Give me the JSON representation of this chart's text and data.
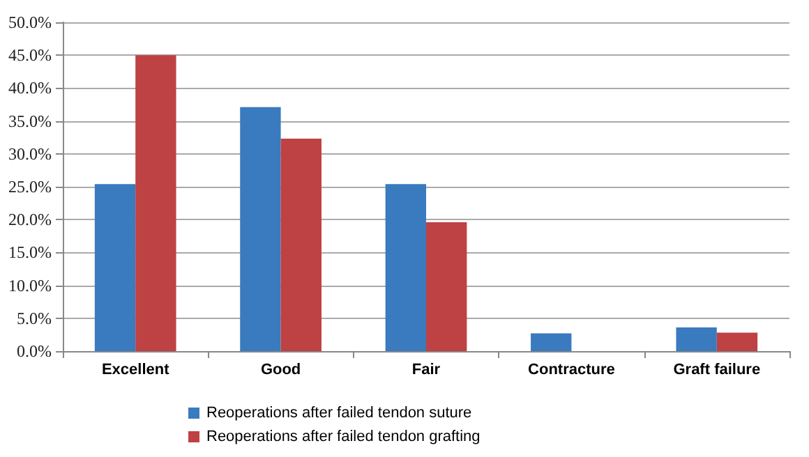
{
  "chart_data": {
    "type": "bar",
    "categories": [
      "Excellent",
      "Good",
      "Fair",
      "Contracture",
      "Graft failure"
    ],
    "series": [
      {
        "name": "Reoperations after failed tendon suture",
        "color": "#3a7abf",
        "values": [
          25.4,
          37.1,
          25.4,
          2.7,
          3.6
        ]
      },
      {
        "name": "Reoperations after failed tendon grafting",
        "color": "#be4144",
        "values": [
          45.0,
          32.3,
          19.6,
          0,
          2.8
        ]
      }
    ],
    "ylim": [
      0,
      50
    ],
    "yticks": [
      {
        "value": 0,
        "label": "0.0%"
      },
      {
        "value": 5,
        "label": "5.0%"
      },
      {
        "value": 10,
        "label": "10.0%"
      },
      {
        "value": 15,
        "label": "15.0%"
      },
      {
        "value": 20,
        "label": "20.0%"
      },
      {
        "value": 25,
        "label": "25.0%"
      },
      {
        "value": 30,
        "label": "30.0%"
      },
      {
        "value": 35,
        "label": "35.0%"
      },
      {
        "value": 40,
        "label": "40.0%"
      },
      {
        "value": 45,
        "label": "45.0%"
      },
      {
        "value": 50,
        "label": "50.0%"
      }
    ],
    "grid": "y",
    "legend": "bottom"
  }
}
